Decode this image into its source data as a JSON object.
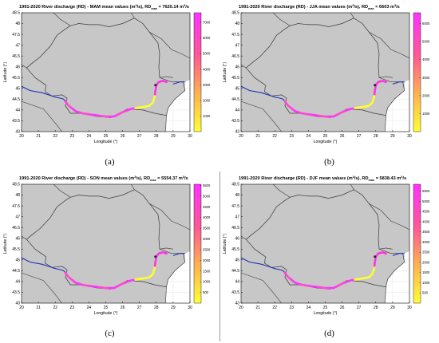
{
  "colors": {
    "land": "#c7c7c7",
    "border": "#3a3a3a",
    "river_upstream": "#1e2fb8",
    "cbar_low": "#ffff33",
    "cbar_high": "#ff33ff"
  },
  "axes": {
    "xlabel": "Longitude (°)",
    "ylabel": "Latitude (°)",
    "xticks": [
      "20",
      "21",
      "22",
      "23",
      "24",
      "25",
      "26",
      "27",
      "28",
      "29",
      "30"
    ],
    "yticks": [
      "48.5",
      "48",
      "47.5",
      "47",
      "46.5",
      "46",
      "45.5",
      "45",
      "44.5",
      "44",
      "43.5",
      "43"
    ]
  },
  "panels": [
    {
      "label": "(a)",
      "title_main": "1991-2020 River discharge (RD) - MAM mean values (m",
      "title_tail": "/s), RD",
      "title_sub": "max",
      "title_value": " = 7620.14 m",
      "cbar_ticks": [
        "7000",
        "6000",
        "5000",
        "4000",
        "3000",
        "2000",
        "1000"
      ],
      "cbar_max": 7620.14
    },
    {
      "label": "(b)",
      "title_main": "1991-2020 River discharge (RD) - JJA mean values (m",
      "title_tail": "/s), RD",
      "title_sub": "max",
      "title_value": " = 6603 m",
      "cbar_ticks": [
        "6000",
        "5000",
        "4000",
        "3000",
        "2000",
        "1000"
      ],
      "cbar_max": 6603
    },
    {
      "label": "(c)",
      "title_main": "1991-2020 River discharge (RD) - SON mean values (m",
      "title_tail": "/s), RD",
      "title_sub": "max",
      "title_value": " = 5554.37 m",
      "cbar_ticks": [
        "5500",
        "5000",
        "4500",
        "4000",
        "3500",
        "3000",
        "2500",
        "2000",
        "1500",
        "1000",
        "500"
      ],
      "cbar_max": 5554.37
    },
    {
      "label": "(d)",
      "title_main": "1991-2020 River discharge (RD) - DJF mean values (m",
      "title_tail": "/s), RD",
      "title_sub": "max",
      "title_value": " = 5838.43 m",
      "cbar_ticks": [
        "5500",
        "5000",
        "4500",
        "4000",
        "3500",
        "3000",
        "2500",
        "2000",
        "1500",
        "1000",
        "500"
      ],
      "cbar_max": 5838.43
    }
  ]
}
